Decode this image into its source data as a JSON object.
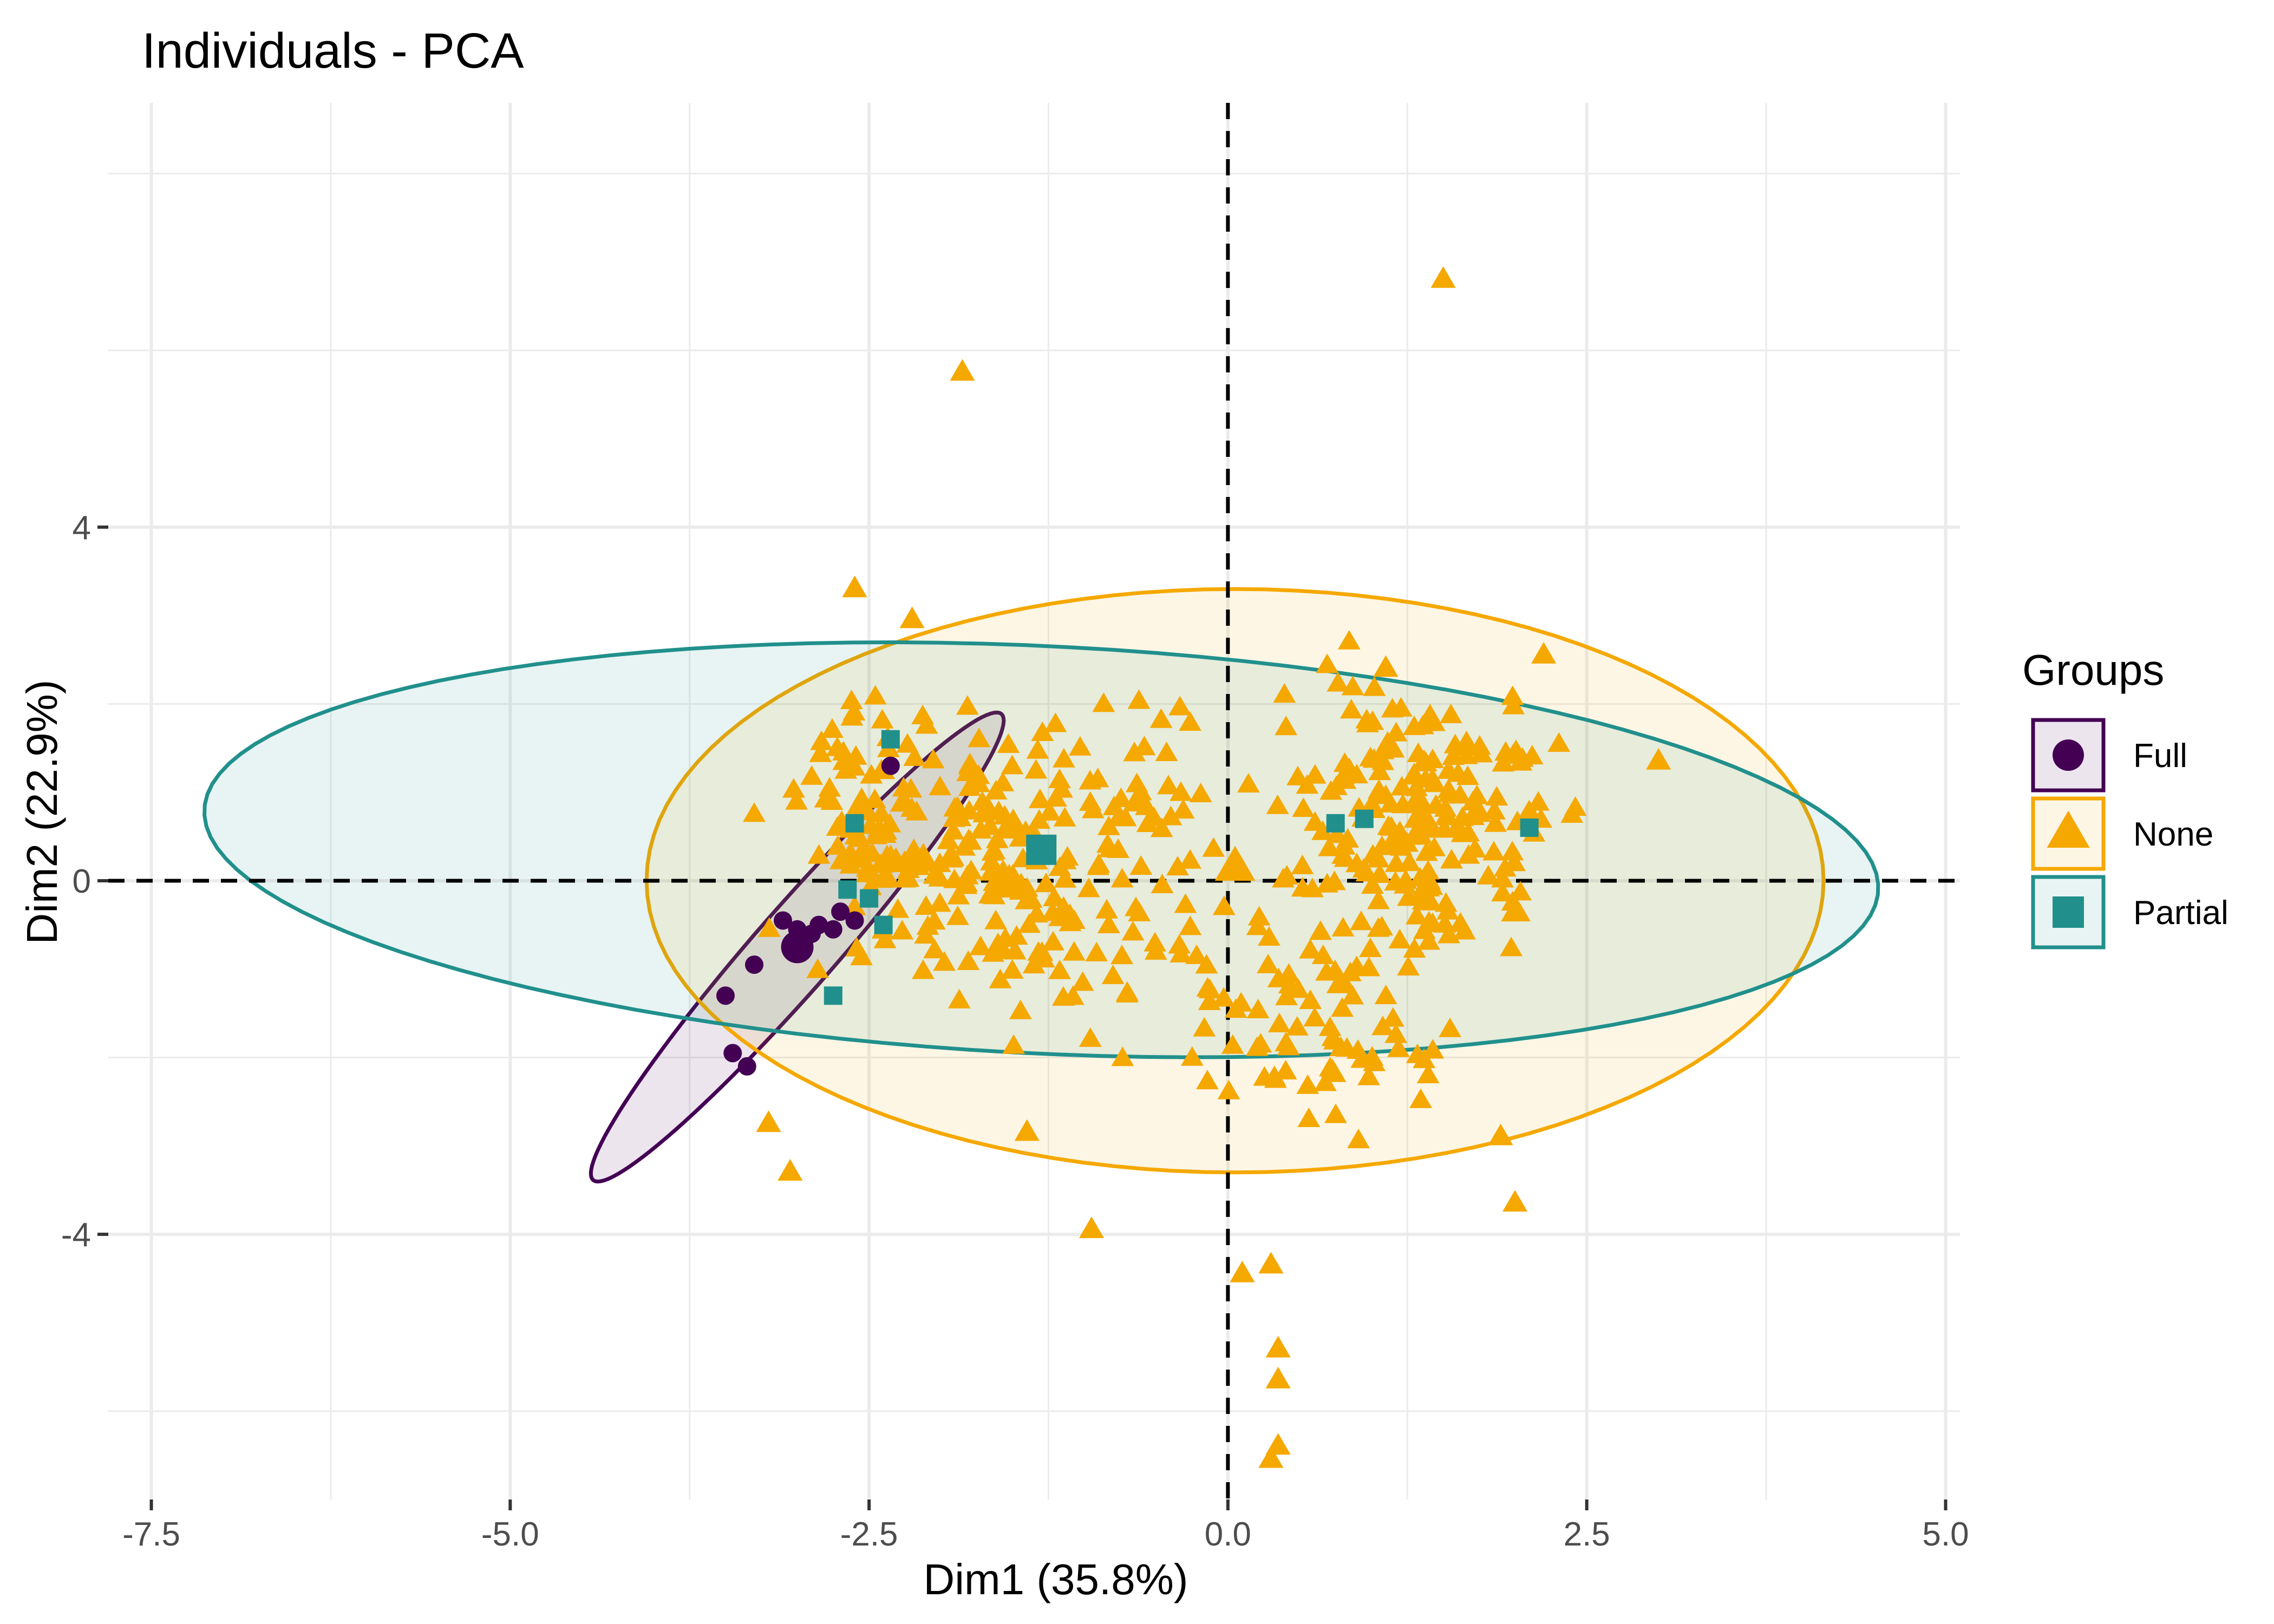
{
  "chart_data": {
    "type": "scatter",
    "title": "Individuals - PCA",
    "xlabel": "Dim1 (35.8%)",
    "ylabel": "Dim2 (22.9%)",
    "xlim": [
      -7.8,
      5.1
    ],
    "ylim": [
      -7.0,
      8.8
    ],
    "x_ticks": [
      -7.5,
      -5.0,
      -2.5,
      0.0,
      2.5,
      5.0
    ],
    "x_tick_labels": [
      "-7.5",
      "-5.0",
      "-2.5",
      "0.0",
      "2.5",
      "5.0"
    ],
    "y_ticks": [
      -4,
      0,
      4
    ],
    "y_tick_labels": [
      "-4",
      "0",
      "4"
    ],
    "grid": true,
    "legend": {
      "title": "Groups",
      "position": "right"
    },
    "reference_lines": {
      "x": 0,
      "y": 0,
      "style": "dashed"
    },
    "series": [
      {
        "name": "Full",
        "color": "#440154",
        "shape": "circle",
        "centroid": [
          -3.0,
          -0.75
        ],
        "ellipse": {
          "cx": -3.0,
          "cy": -0.75,
          "rx": 3.0,
          "ry": 0.33,
          "angle_deg": 62
        },
        "points": [
          [
            -3.45,
            -1.95
          ],
          [
            -3.35,
            -2.1
          ],
          [
            -3.5,
            -1.3
          ],
          [
            -3.3,
            -0.95
          ],
          [
            -3.1,
            -0.45
          ],
          [
            -3.0,
            -0.55
          ],
          [
            -2.85,
            -0.5
          ],
          [
            -2.7,
            -0.35
          ],
          [
            -2.6,
            -0.45
          ],
          [
            -2.35,
            1.3
          ],
          [
            -2.9,
            -0.6
          ],
          [
            -2.75,
            -0.55
          ]
        ]
      },
      {
        "name": "None",
        "color": "#F5A800",
        "shape": "triangle",
        "centroid": [
          0.05,
          0.15
        ],
        "ellipse": {
          "cx": 0.05,
          "cy": 0.0,
          "rx": 4.1,
          "ry": 3.3,
          "angle_deg": 0
        },
        "points": [
          [
            1.5,
            6.8
          ],
          [
            -1.85,
            5.75
          ],
          [
            -2.6,
            3.3
          ],
          [
            -2.2,
            2.95
          ],
          [
            1.1,
            2.4
          ],
          [
            2.2,
            2.55
          ],
          [
            3.0,
            1.35
          ],
          [
            -0.95,
            -3.95
          ],
          [
            0.3,
            -4.35
          ],
          [
            0.35,
            -5.3
          ],
          [
            0.35,
            -5.65
          ],
          [
            0.35,
            -6.4
          ],
          [
            0.3,
            -6.55
          ],
          [
            2.0,
            -3.65
          ],
          [
            1.9,
            -2.9
          ],
          [
            -3.05,
            -3.3
          ],
          [
            -3.2,
            -2.75
          ],
          [
            -1.4,
            -2.85
          ],
          [
            0.1,
            -4.45
          ]
        ]
      },
      {
        "name": "Partial",
        "color": "#21908C",
        "shape": "square",
        "centroid": [
          -1.3,
          0.35
        ],
        "ellipse": {
          "cx": -1.3,
          "cy": 0.35,
          "rx": 5.85,
          "ry": 2.3,
          "angle_deg": -5
        },
        "points": [
          [
            -2.35,
            1.6
          ],
          [
            -2.6,
            0.65
          ],
          [
            -2.65,
            -0.1
          ],
          [
            -2.5,
            -0.2
          ],
          [
            -2.75,
            -1.3
          ],
          [
            0.75,
            0.65
          ],
          [
            0.95,
            0.7
          ],
          [
            2.1,
            0.6
          ],
          [
            -2.4,
            -0.5
          ]
        ]
      }
    ]
  }
}
